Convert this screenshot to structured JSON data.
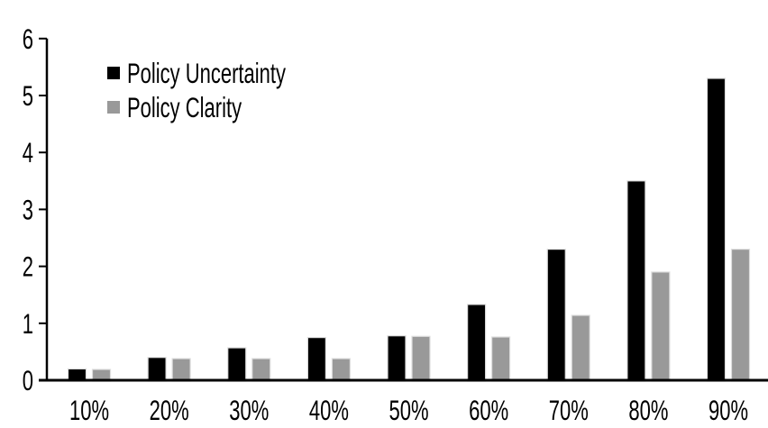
{
  "chart_data": {
    "type": "bar",
    "title": "",
    "xlabel": "",
    "ylabel": "",
    "categories": [
      "10%",
      "20%",
      "30%",
      "40%",
      "50%",
      "60%",
      "70%",
      "80%",
      "90%"
    ],
    "series": [
      {
        "name": "Policy Uncertainty",
        "color": "#000000",
        "values": [
          0.2,
          0.4,
          0.57,
          0.75,
          0.78,
          1.33,
          2.3,
          3.5,
          5.3
        ]
      },
      {
        "name": "Policy Clarity",
        "color": "#999999",
        "values": [
          0.19,
          0.38,
          0.38,
          0.38,
          0.77,
          0.76,
          1.14,
          1.9,
          2.3
        ]
      }
    ],
    "ylim": [
      0,
      6
    ],
    "yticks": [
      0,
      1,
      2,
      3,
      4,
      5,
      6
    ],
    "grid": false,
    "legend_position": "top-left-inside",
    "axis_color": "#000000",
    "background_color": "#ffffff",
    "bar_border_color": "#dedede"
  }
}
